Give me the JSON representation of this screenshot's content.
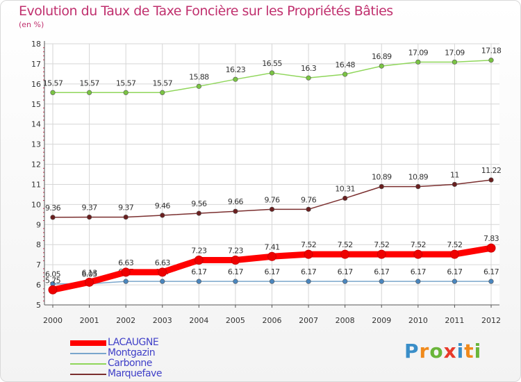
{
  "title": "Evolution du Taux de Taxe Foncière sur les Propriétés Bâties",
  "subtitle": "(en %)",
  "logo": {
    "letters": [
      "P",
      "r",
      "o",
      "x",
      "i",
      "t",
      "i"
    ],
    "colors": [
      "#3a8ec8",
      "#f08a1c",
      "#6ab53a",
      "#e83a2a",
      "#3a8ec8",
      "#f08a1c",
      "#6ab53a"
    ]
  },
  "chart_data": {
    "type": "line",
    "title": "Evolution du Taux de Taxe Foncière sur les Propriétés Bâties",
    "ylabel": "(en %)",
    "xlabel": "",
    "x": [
      "2000",
      "2001",
      "2002",
      "2003",
      "2004",
      "2005",
      "2006",
      "2007",
      "2008",
      "2009",
      "2010",
      "2011",
      "2012"
    ],
    "ylim": [
      5,
      18
    ],
    "yticks": [
      "5",
      "6",
      "7",
      "8",
      "9",
      "10",
      "11",
      "12",
      "13",
      "14",
      "15",
      "16",
      "17",
      "18"
    ],
    "grid": true,
    "legend_position": "bottom-left",
    "series": [
      {
        "name": "Carbonne",
        "color": "#8fd65a",
        "marker": "#7ac443",
        "values": [
          15.57,
          15.57,
          15.57,
          15.57,
          15.88,
          16.23,
          16.55,
          16.3,
          16.48,
          16.89,
          17.09,
          17.09,
          17.18
        ],
        "labels": [
          "15.57",
          "15.57",
          "15.57",
          "15.57",
          "15.88",
          "16.23",
          "16.55",
          "16.3",
          "16.48",
          "16.89",
          "17.09",
          "17.09",
          "17.18"
        ]
      },
      {
        "name": "Marquefave",
        "color": "#7a2e2e",
        "marker": "#6a1f1f",
        "values": [
          9.36,
          9.37,
          9.37,
          9.46,
          9.56,
          9.66,
          9.76,
          9.76,
          10.31,
          10.89,
          10.89,
          11,
          11.22
        ],
        "labels": [
          "9.36",
          "9.37",
          "9.37",
          "9.46",
          "9.56",
          "9.66",
          "9.76",
          "9.76",
          "10.31",
          "10.89",
          "10.89",
          "11",
          "11.22"
        ]
      },
      {
        "name": "Montgazin",
        "color": "#7aa6cc",
        "marker": "#4a86be",
        "values": [
          6.05,
          6.05,
          6.17,
          6.17,
          6.17,
          6.17,
          6.17,
          6.17,
          6.17,
          6.17,
          6.17,
          6.17,
          6.17
        ],
        "labels": [
          "6.05",
          "6.05",
          "6.17",
          "6.17",
          "6.17",
          "6.17",
          "6.17",
          "6.17",
          "6.17",
          "6.17",
          "6.17",
          "6.17",
          "6.17"
        ]
      },
      {
        "name": "LACAUGNE",
        "color": "#ff0000",
        "marker": "#ee0000",
        "values": [
          5.75,
          6.13,
          6.63,
          6.63,
          7.23,
          7.23,
          7.41,
          7.52,
          7.52,
          7.52,
          7.52,
          7.52,
          7.83
        ],
        "labels": [
          "5.75",
          "6.13",
          "6.63",
          "6.63",
          "7.23",
          "7.23",
          "7.41",
          "7.52",
          "7.52",
          "7.52",
          "7.52",
          "7.52",
          "7.83"
        ]
      }
    ],
    "legend": [
      "LACAUGNE",
      "Montgazin",
      "Carbonne",
      "Marquefave"
    ]
  }
}
